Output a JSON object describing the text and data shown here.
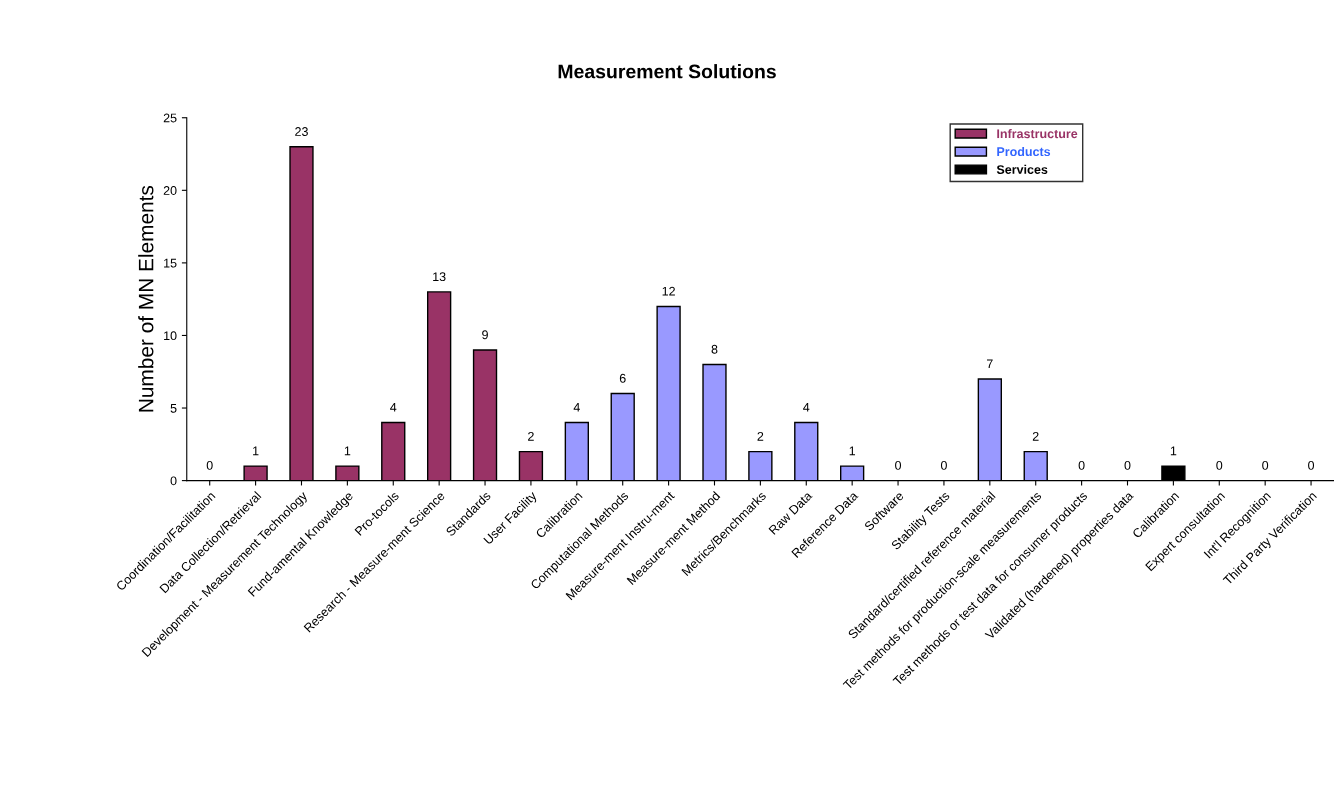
{
  "chart_data": {
    "type": "bar",
    "title": "Measurement Solutions",
    "ylabel": "Number of MN Elements",
    "categories": [
      "Coordination/Facilitation",
      "Data Collection/Retrieval",
      "Development - Measurement Technology",
      "Fund-amental Knowledge",
      "Pro-tocols",
      "Research - Measure-ment Science",
      "Standards",
      "User Facility",
      "Calibration",
      "Computational Methods",
      "Measure-ment Instru-ment",
      "Measure-ment Method",
      "Metrics/Benchmarks",
      "Raw Data",
      "Reference Data",
      "Software",
      "Stability Tests",
      "Standard/certified reference material",
      "Test methods for production-scale measurements",
      "Test methods or test data for consumer products",
      "Validated (hardened) properties data",
      "Calibration",
      "Expert consultation",
      "Int'l Recognition",
      "Third Party Verification"
    ],
    "series": [
      {
        "name": "Infrastructure",
        "color": "#993366",
        "values": [
          0,
          1,
          23,
          1,
          4,
          13,
          9,
          2,
          null,
          null,
          null,
          null,
          null,
          null,
          null,
          null,
          null,
          null,
          null,
          null,
          null,
          null,
          null,
          null,
          null
        ]
      },
      {
        "name": "Products",
        "color": "#9999ff",
        "values": [
          null,
          null,
          null,
          null,
          null,
          null,
          null,
          null,
          4,
          6,
          12,
          8,
          2,
          4,
          1,
          0,
          0,
          7,
          2,
          0,
          0,
          null,
          null,
          null,
          null
        ]
      },
      {
        "name": "Services",
        "color": "#000000",
        "values": [
          null,
          null,
          null,
          null,
          null,
          null,
          null,
          null,
          null,
          null,
          null,
          null,
          null,
          null,
          null,
          null,
          null,
          null,
          null,
          null,
          null,
          1,
          0,
          0,
          0
        ]
      }
    ],
    "ylim": [
      0,
      25
    ],
    "yticks": [
      0,
      5,
      10,
      15,
      20,
      25
    ],
    "data_labels": true,
    "legend": "top right",
    "grid": false
  }
}
